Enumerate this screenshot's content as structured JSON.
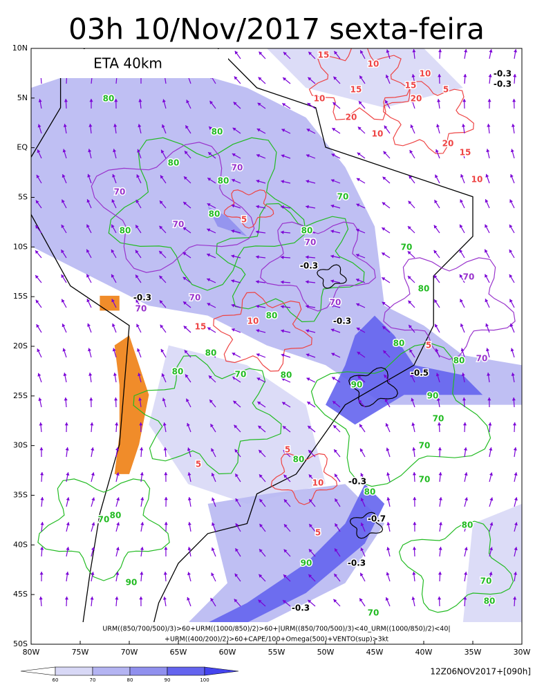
{
  "header": {
    "title": "03h 10/Nov/2017 sexta-feira",
    "model_label": "ETA 40km"
  },
  "axes": {
    "lat_labels": [
      "10N",
      "5N",
      "EQ",
      "5S",
      "10S",
      "15S",
      "20S",
      "25S",
      "30S",
      "35S",
      "40S",
      "45S",
      "50S"
    ],
    "lon_labels": [
      "80W",
      "75W",
      "70W",
      "65W",
      "60W",
      "55W",
      "50W",
      "45W",
      "40W",
      "35W",
      "30W"
    ]
  },
  "contour_labels": [
    "15",
    "10",
    "10",
    "15",
    "15",
    "5",
    "20",
    "-0.3",
    "-0.3",
    "80",
    "10",
    "20",
    "10",
    "80",
    "20",
    "15",
    "80",
    "70",
    "10",
    "80",
    "70",
    "70",
    "70",
    "80",
    "5",
    "80",
    "80",
    "70",
    "70",
    "-0.3",
    "70",
    "80",
    "-0.3",
    "70",
    "70",
    "70",
    "-0.3",
    "10",
    "80",
    "15",
    "80",
    "5",
    "80",
    "80",
    "70",
    "80",
    "70",
    "80",
    "-0.5",
    "90",
    "90",
    "70",
    "5",
    "5",
    "80",
    "70",
    "-0.3",
    "10",
    "70",
    "80",
    "-0.7",
    "80",
    "70",
    "5",
    "80",
    "-0.3",
    "90",
    "70",
    "90",
    "80",
    "-0.3",
    "70"
  ],
  "formula": [
    "URM((850/700/500)/3)>60+URM((1000/850)/2)>60+|URM((850/700/500)/3)<40_URM((1000/850)/2)<40|",
    "+URM((400/200)/2)>60+CAPE/100+Omega(500)+VENTO(sup)>3kt"
  ],
  "colorbar": {
    "labels": [
      "60",
      "70",
      "80",
      "90",
      "100"
    ]
  },
  "timestamp": "12Z06NOV2017+[090h]"
}
